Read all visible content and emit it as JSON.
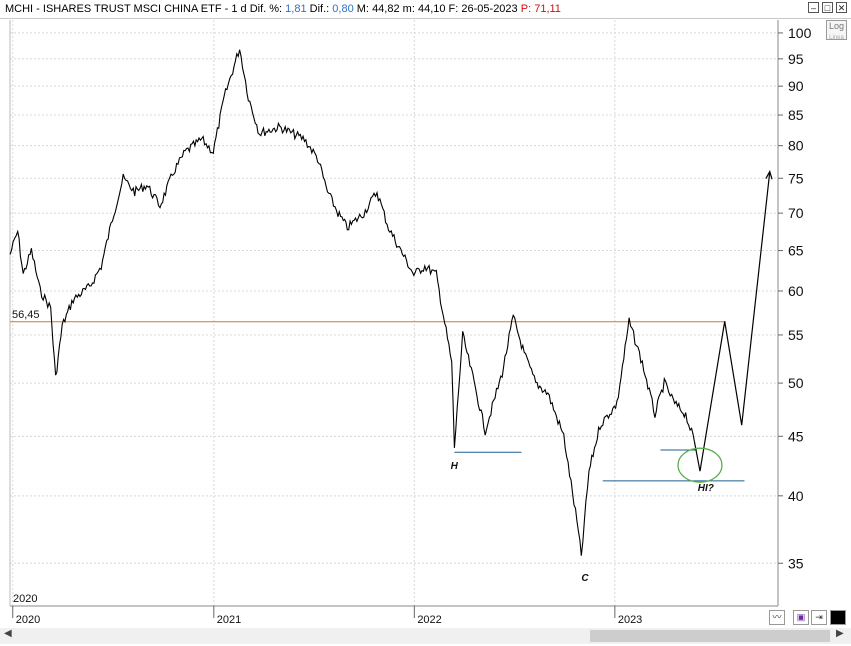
{
  "header": {
    "symbol": "MCHI - ISHARES TRUST MSCI CHINA ETF -",
    "period": "1 d",
    "dif_pct_label": "Dif. %:",
    "dif_pct": "1,81",
    "dif_label": "Dif.:",
    "dif": "0,80",
    "max_label": "M:",
    "max": "44,82",
    "min_label": "m:",
    "min": "44,10",
    "date_label": "F:",
    "date": "26-05-2023",
    "p_label": "P:",
    "p": "71,11"
  },
  "controls": {
    "log_label": "Log",
    "log_sub": "Linea"
  },
  "chart_data": {
    "type": "line",
    "y_scale": "log",
    "ylim": [
      33,
      103
    ],
    "y_ticks": [
      "100",
      "95",
      "90",
      "85",
      "80",
      "75",
      "70",
      "65",
      "60",
      "55",
      "50",
      "45",
      "40",
      "35"
    ],
    "x_labels": [
      "2020",
      "2021",
      "2022",
      "2023"
    ],
    "corner_label": "2020",
    "x_ticks": [
      "2020-01-01",
      "2021-01-01",
      "2022-01-01",
      "2023-01-01"
    ],
    "xlim": [
      "2019-12-27",
      "2023-10-25"
    ],
    "price_series": [
      [
        "2019-12-27",
        64.5
      ],
      [
        "2020-01-10",
        67.5
      ],
      [
        "2020-01-20",
        62
      ],
      [
        "2020-02-04",
        65
      ],
      [
        "2020-02-20",
        60
      ],
      [
        "2020-03-10",
        58
      ],
      [
        "2020-03-19",
        50.5
      ],
      [
        "2020-03-31",
        56
      ],
      [
        "2020-04-20",
        59
      ],
      [
        "2020-05-20",
        60.5
      ],
      [
        "2020-06-10",
        63
      ],
      [
        "2020-07-03",
        70
      ],
      [
        "2020-07-20",
        75
      ],
      [
        "2020-08-10",
        73
      ],
      [
        "2020-09-01",
        74
      ],
      [
        "2020-09-25",
        71
      ],
      [
        "2020-10-20",
        76
      ],
      [
        "2020-11-10",
        79
      ],
      [
        "2020-12-10",
        81
      ],
      [
        "2020-12-31",
        79
      ],
      [
        "2021-01-20",
        88
      ],
      [
        "2021-02-17",
        97
      ],
      [
        "2021-03-05",
        88
      ],
      [
        "2021-03-25",
        82
      ],
      [
        "2021-05-01",
        83
      ],
      [
        "2021-06-15",
        81
      ],
      [
        "2021-07-09",
        78
      ],
      [
        "2021-07-27",
        73
      ],
      [
        "2021-08-15",
        70
      ],
      [
        "2021-09-01",
        68
      ],
      [
        "2021-10-01",
        70
      ],
      [
        "2021-10-25",
        73
      ],
      [
        "2021-11-15",
        68
      ],
      [
        "2021-12-15",
        64
      ],
      [
        "2021-12-31",
        62
      ],
      [
        "2022-01-20",
        63
      ],
      [
        "2022-02-10",
        62
      ],
      [
        "2022-03-10",
        52
      ],
      [
        "2022-03-15",
        44
      ],
      [
        "2022-03-30",
        55
      ],
      [
        "2022-04-20",
        50
      ],
      [
        "2022-05-10",
        45.5
      ],
      [
        "2022-06-10",
        51
      ],
      [
        "2022-06-30",
        57
      ],
      [
        "2022-07-20",
        53
      ],
      [
        "2022-08-10",
        50
      ],
      [
        "2022-09-01",
        49
      ],
      [
        "2022-09-30",
        45
      ],
      [
        "2022-10-24",
        38
      ],
      [
        "2022-11-01",
        35.5
      ],
      [
        "2022-11-15",
        42
      ],
      [
        "2022-12-05",
        46
      ],
      [
        "2023-01-05",
        48
      ],
      [
        "2023-01-27",
        56.5
      ],
      [
        "2023-02-20",
        52
      ],
      [
        "2023-03-15",
        47
      ],
      [
        "2023-04-01",
        50
      ],
      [
        "2023-04-20",
        48
      ],
      [
        "2023-05-10",
        47
      ],
      [
        "2023-05-26",
        44.5
      ]
    ],
    "projection": [
      [
        "2023-05-26",
        44.5
      ],
      [
        "2023-06-05",
        42
      ],
      [
        "2023-07-20",
        56.5
      ],
      [
        "2023-08-20",
        46
      ],
      [
        "2023-10-10",
        76
      ]
    ],
    "resistance": {
      "value": 56.45,
      "label": "56,45",
      "from": "2019-12-27",
      "to": "2023-07-22"
    },
    "support_lines": [
      {
        "value": 43.6,
        "from": "2022-03-15",
        "to": "2022-07-15"
      },
      {
        "value": 41.2,
        "from": "2022-12-10",
        "to": "2023-08-25"
      },
      {
        "value": 43.8,
        "from": "2023-03-25",
        "to": "2023-05-30"
      }
    ],
    "annotations": [
      {
        "text": "H",
        "date": "2022-03-08",
        "value": 42.2
      },
      {
        "text": "C",
        "date": "2022-11-01",
        "value": 33.8
      },
      {
        "text": "HI?",
        "date": "2023-06-01",
        "value": 40.4
      }
    ],
    "highlight": {
      "date": "2023-06-05",
      "value": 42.5
    }
  }
}
